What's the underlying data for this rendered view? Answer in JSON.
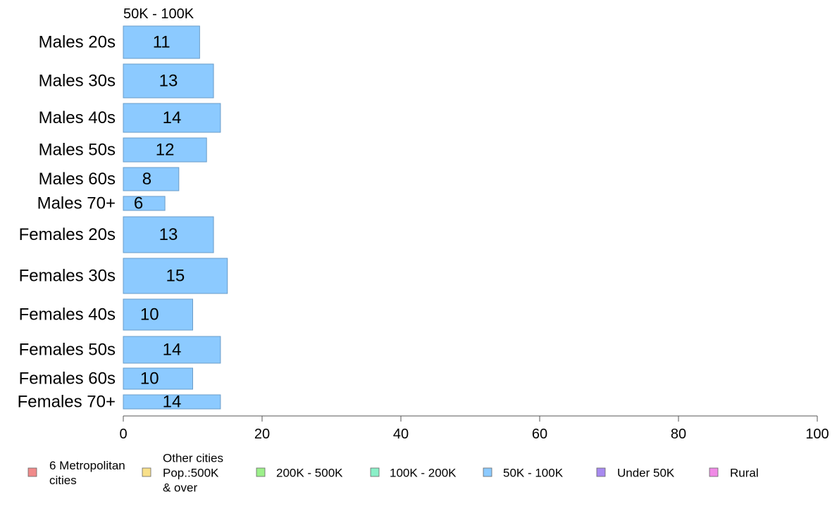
{
  "chart_data": {
    "type": "bar",
    "orientation": "horizontal",
    "title": "50K - 100K",
    "xlim": [
      0,
      100
    ],
    "xticks": [
      0,
      20,
      40,
      60,
      80,
      100
    ],
    "grid": false,
    "bar_color": "#8ccaff",
    "bar_border_color": "#6a9cc8",
    "categories": [
      "Males 20s",
      "Males 30s",
      "Males 40s",
      "Males 50s",
      "Males 60s",
      "Males 70+",
      "Females 20s",
      "Females 30s",
      "Females 40s",
      "Females 50s",
      "Females 60s",
      "Females 70+"
    ],
    "values": [
      11,
      13,
      14,
      12,
      8,
      6,
      13,
      15,
      10,
      14,
      10,
      14
    ],
    "legend": {
      "placement": "bottom",
      "entries": [
        {
          "lines": [
            "6 Metropolitan",
            " cities"
          ],
          "color": "#f08a8a"
        },
        {
          "lines": [
            "Other cities",
            "Pop.:500K",
            " & over"
          ],
          "color": "#f8e08a"
        },
        {
          "lines": [
            "200K - 500K"
          ],
          "color": "#9cf08a"
        },
        {
          "lines": [
            "100K - 200K"
          ],
          "color": "#8af0c8"
        },
        {
          "lines": [
            "50K - 100K"
          ],
          "color": "#8ccaff"
        },
        {
          "lines": [
            "Under 50K"
          ],
          "color": "#a88af0"
        },
        {
          "lines": [
            "Rural"
          ],
          "color": "#f08ae6"
        }
      ]
    }
  }
}
